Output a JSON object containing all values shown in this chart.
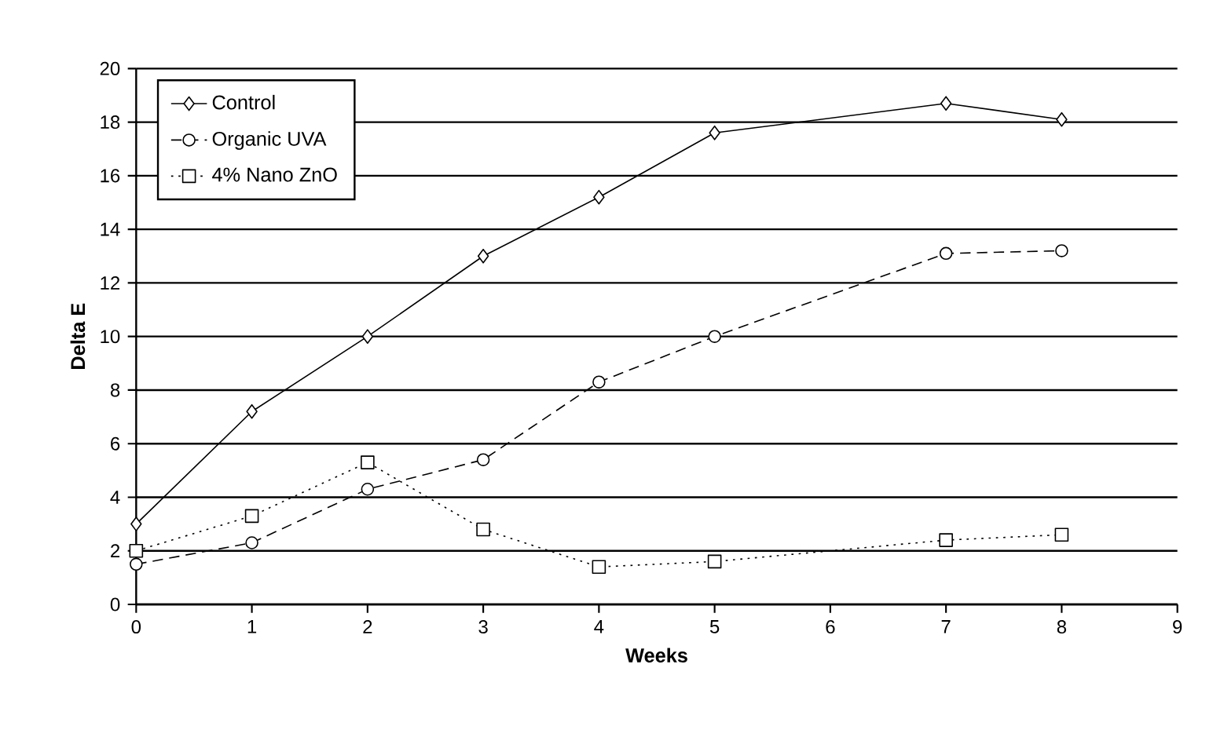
{
  "chart_data": {
    "type": "line",
    "xlabel": "Weeks",
    "ylabel": "Delta E",
    "x": [
      0,
      1,
      2,
      3,
      4,
      5,
      7,
      8
    ],
    "series": [
      {
        "name": "Control",
        "color": "#000000",
        "marker": "diamond",
        "line_style": "solid",
        "values": [
          3.0,
          7.2,
          10.0,
          13.0,
          15.2,
          17.6,
          18.7,
          18.1
        ]
      },
      {
        "name": "Organic UVA",
        "color": "#000000",
        "marker": "circle",
        "line_style": "dashed",
        "values": [
          1.5,
          2.3,
          4.3,
          5.4,
          8.3,
          10.0,
          13.1,
          13.2
        ]
      },
      {
        "name": "4% Nano ZnO",
        "color": "#000000",
        "marker": "square",
        "line_style": "dotted",
        "values": [
          2.0,
          3.3,
          5.3,
          2.8,
          1.4,
          1.6,
          2.4,
          2.6
        ]
      }
    ],
    "xlim": [
      0,
      9
    ],
    "xticks": [
      0,
      1,
      2,
      3,
      4,
      5,
      6,
      7,
      8,
      9
    ],
    "ylim": [
      0,
      20
    ],
    "yticks": [
      0,
      2,
      4,
      6,
      8,
      10,
      12,
      14,
      16,
      18,
      20
    ],
    "grid": "y",
    "legend": "top left"
  }
}
